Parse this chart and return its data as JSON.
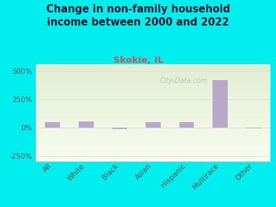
{
  "title": "Change in non-family household\nincome between 2000 and 2022",
  "subtitle": "Skokie, IL",
  "categories": [
    "All",
    "White",
    "Black",
    "Asian",
    "Hispanic",
    "Multirace",
    "Other"
  ],
  "values": [
    50,
    55,
    -15,
    50,
    48,
    420,
    -5
  ],
  "bar_color": "#b9a8c8",
  "title_fontsize": 10.5,
  "subtitle_fontsize": 9.5,
  "subtitle_color": "#cc5555",
  "title_color": "#1a1a2e",
  "bg_outer": "#00eeee",
  "ylim": [
    -300,
    560
  ],
  "yticks": [
    -250,
    0,
    250,
    500
  ],
  "ytick_labels": [
    "-250%",
    "0%",
    "250%",
    "500%"
  ],
  "grid_color": "#dddddd",
  "watermark": "City-Data.com"
}
